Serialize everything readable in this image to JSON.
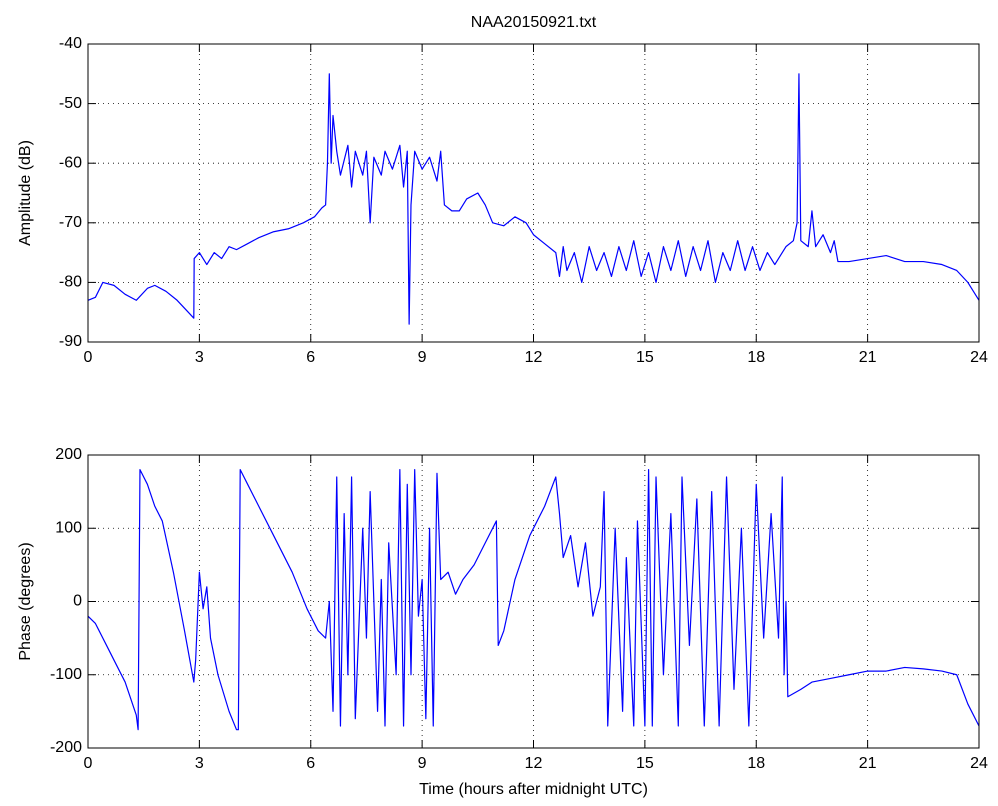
{
  "chart_data": [
    {
      "type": "line",
      "title": "NAA20150921.txt",
      "ylabel": "Amplitude (dB)",
      "color": "#0000ff",
      "grid": true,
      "xlim": [
        0,
        24
      ],
      "xticks": [
        0,
        3,
        6,
        9,
        12,
        15,
        18,
        21,
        24
      ],
      "ylim": [
        -90,
        -40
      ],
      "yticks": [
        -90,
        -80,
        -70,
        -60,
        -50,
        -40
      ],
      "x": [
        0,
        0.2,
        0.4,
        0.7,
        1,
        1.3,
        1.6,
        1.8,
        2.1,
        2.4,
        2.7,
        2.85,
        2.86,
        3.0,
        3.2,
        3.4,
        3.6,
        3.8,
        4.0,
        4.3,
        4.6,
        5.0,
        5.4,
        5.8,
        6.1,
        6.3,
        6.4,
        6.45,
        6.5,
        6.55,
        6.6,
        6.7,
        6.8,
        7.0,
        7.1,
        7.2,
        7.3,
        7.4,
        7.5,
        7.6,
        7.7,
        7.9,
        8.0,
        8.2,
        8.4,
        8.5,
        8.6,
        8.65,
        8.7,
        8.8,
        9.0,
        9.2,
        9.4,
        9.5,
        9.6,
        9.8,
        10.0,
        10.2,
        10.5,
        10.7,
        10.9,
        11.2,
        11.5,
        11.8,
        12.0,
        12.3,
        12.6,
        12.7,
        12.8,
        12.9,
        13.1,
        13.3,
        13.5,
        13.7,
        13.9,
        14.1,
        14.3,
        14.5,
        14.7,
        14.9,
        15.1,
        15.3,
        15.5,
        15.7,
        15.9,
        16.1,
        16.3,
        16.5,
        16.7,
        16.9,
        17.1,
        17.3,
        17.5,
        17.7,
        17.9,
        18.1,
        18.3,
        18.5,
        18.8,
        19.0,
        19.1,
        19.15,
        19.2,
        19.4,
        19.5,
        19.6,
        19.8,
        20.0,
        20.1,
        20.2,
        20.5,
        21.0,
        21.5,
        22.0,
        22.5,
        23.0,
        23.4,
        23.7,
        24.0
      ],
      "values": [
        -83,
        -82.5,
        -80,
        -80.5,
        -82,
        -83,
        -81,
        -80.5,
        -81.5,
        -83,
        -85,
        -86,
        -76,
        -75,
        -77,
        -75,
        -76,
        -74,
        -74.5,
        -73.5,
        -72.5,
        -71.5,
        -71,
        -70,
        -69,
        -67.5,
        -67,
        -60,
        -45,
        -60,
        -52,
        -58,
        -62,
        -57,
        -64,
        -58,
        -60,
        -62,
        -58,
        -70,
        -59,
        -62,
        -58,
        -61,
        -57,
        -64,
        -58,
        -87,
        -67,
        -58,
        -61,
        -59,
        -63,
        -58,
        -67,
        -68,
        -68,
        -66,
        -65,
        -67,
        -70,
        -70.5,
        -69,
        -70,
        -72,
        -73.5,
        -75,
        -79,
        -74,
        -78,
        -75,
        -80,
        -74,
        -78,
        -75,
        -79,
        -74,
        -78,
        -73,
        -79,
        -75,
        -80,
        -74,
        -78,
        -73,
        -79,
        -74,
        -78,
        -73,
        -80,
        -75,
        -78,
        -73,
        -78,
        -74,
        -78,
        -75,
        -77,
        -74,
        -73,
        -70,
        -45,
        -73,
        -74,
        -68,
        -74,
        -72,
        -75,
        -73,
        -76.5,
        -76.5,
        -76,
        -75.5,
        -76.5,
        -76.5,
        -77,
        -78,
        -80,
        -83
      ]
    },
    {
      "type": "line",
      "xlabel": "Time (hours after midnight UTC)",
      "ylabel": "Phase (degrees)",
      "color": "#0000ff",
      "grid": true,
      "xlim": [
        0,
        24
      ],
      "xticks": [
        0,
        3,
        6,
        9,
        12,
        15,
        18,
        21,
        24
      ],
      "ylim": [
        -200,
        200
      ],
      "yticks": [
        -200,
        -100,
        0,
        100,
        200
      ],
      "x": [
        0,
        0.2,
        0.3,
        0.5,
        0.8,
        1.0,
        1.1,
        1.3,
        1.35,
        1.4,
        1.6,
        1.8,
        2.0,
        2.3,
        2.6,
        2.85,
        2.9,
        3.0,
        3.1,
        3.2,
        3.3,
        3.5,
        3.8,
        4.0,
        4.05,
        4.1,
        4.3,
        4.6,
        5.0,
        5.5,
        5.9,
        6.2,
        6.4,
        6.5,
        6.6,
        6.7,
        6.8,
        6.9,
        7.0,
        7.1,
        7.2,
        7.4,
        7.5,
        7.6,
        7.8,
        7.9,
        8.0,
        8.1,
        8.3,
        8.4,
        8.5,
        8.6,
        8.7,
        8.8,
        8.9,
        9.0,
        9.1,
        9.2,
        9.3,
        9.4,
        9.5,
        9.7,
        9.9,
        10.1,
        10.4,
        10.7,
        11.0,
        11.05,
        11.2,
        11.5,
        11.9,
        12.3,
        12.6,
        12.7,
        12.8,
        13.0,
        13.2,
        13.4,
        13.6,
        13.8,
        13.9,
        14.0,
        14.2,
        14.4,
        14.5,
        14.7,
        14.8,
        15.0,
        15.1,
        15.2,
        15.3,
        15.5,
        15.7,
        15.9,
        16.0,
        16.2,
        16.4,
        16.6,
        16.8,
        17.0,
        17.2,
        17.4,
        17.6,
        17.8,
        18.0,
        18.2,
        18.4,
        18.6,
        18.7,
        18.75,
        18.8,
        18.85,
        19.2,
        19.5,
        20.0,
        20.5,
        21.0,
        21.5,
        22.0,
        22.5,
        23.0,
        23.4,
        23.7,
        24.0
      ],
      "values": [
        -20,
        -30,
        -40,
        -60,
        -90,
        -110,
        -125,
        -155,
        -175,
        180,
        160,
        130,
        110,
        40,
        -40,
        -110,
        -80,
        40,
        -10,
        20,
        -50,
        -100,
        -150,
        -175,
        -175,
        180,
        160,
        130,
        90,
        40,
        -10,
        -40,
        -50,
        0,
        -150,
        170,
        -170,
        120,
        -100,
        170,
        -160,
        100,
        -50,
        150,
        -150,
        30,
        -170,
        80,
        -100,
        180,
        -170,
        160,
        -100,
        180,
        -20,
        30,
        -160,
        100,
        -170,
        175,
        30,
        40,
        10,
        30,
        50,
        80,
        110,
        -60,
        -40,
        30,
        90,
        130,
        170,
        120,
        60,
        90,
        20,
        80,
        -20,
        20,
        150,
        -170,
        100,
        -150,
        60,
        -170,
        110,
        -170,
        180,
        -170,
        170,
        -100,
        120,
        -170,
        170,
        -60,
        140,
        -170,
        150,
        -170,
        170,
        -120,
        100,
        -170,
        160,
        -50,
        120,
        -50,
        170,
        -100,
        0,
        -130,
        -120,
        -110,
        -105,
        -100,
        -95,
        -95,
        -90,
        -92,
        -95,
        -100,
        -140,
        -170
      ]
    }
  ]
}
